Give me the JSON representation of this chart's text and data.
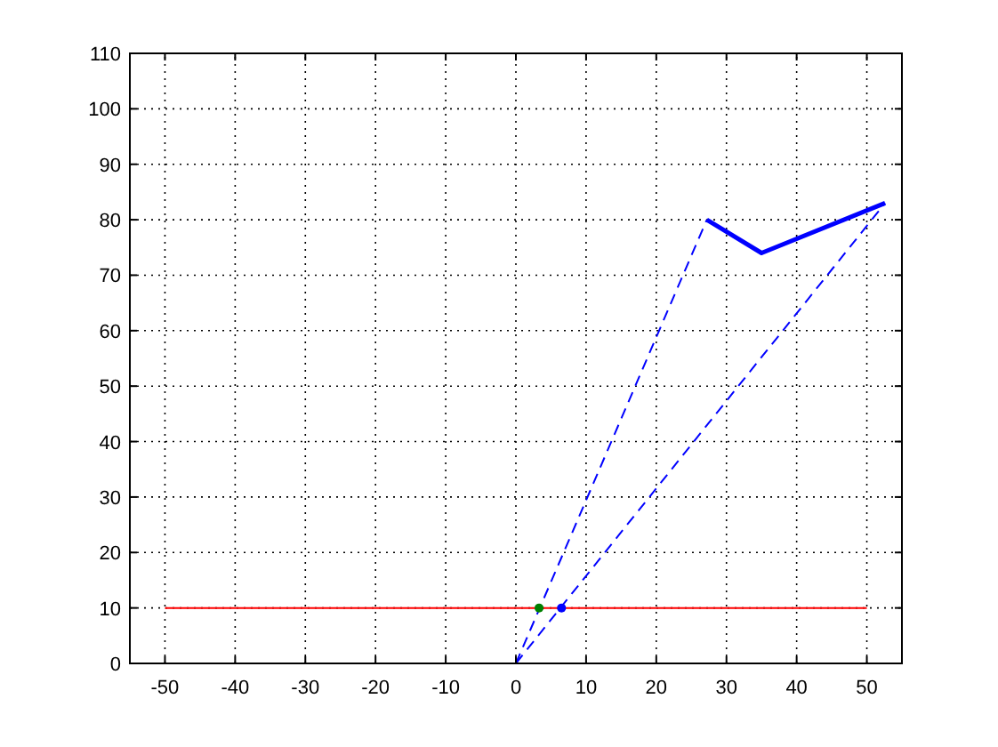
{
  "chart_data": {
    "type": "line",
    "xlim": [
      -55,
      55
    ],
    "ylim": [
      0,
      110
    ],
    "xticks": [
      -50,
      -40,
      -30,
      -20,
      -10,
      0,
      10,
      20,
      30,
      40,
      50
    ],
    "yticks": [
      0,
      10,
      20,
      30,
      40,
      50,
      60,
      70,
      80,
      90,
      100,
      110
    ],
    "grid": true,
    "line_style": "solid",
    "marker": "none",
    "series": [
      {
        "color": "#ff0000",
        "x": [
          -50,
          50
        ],
        "values": [
          10,
          10
        ]
      },
      {
        "color": "#0000ff",
        "x": [
          0,
          27.2
        ],
        "values": [
          0,
          80
        ],
        "line_style": "dashed"
      },
      {
        "color": "#0000ff",
        "x": [
          0,
          52.6
        ],
        "values": [
          0,
          83
        ],
        "line_style": "dashed"
      },
      {
        "color": "#0000ff",
        "x": [
          27.2,
          35,
          52.6
        ],
        "values": [
          80,
          74,
          83
        ]
      },
      {
        "type": "scatter",
        "color": "#008000",
        "x": [
          3.3
        ],
        "values": [
          10
        ],
        "marker": "circle"
      },
      {
        "type": "scatter",
        "color": "#0000ff",
        "x": [
          6.5
        ],
        "values": [
          10
        ],
        "marker": "circle"
      }
    ]
  }
}
